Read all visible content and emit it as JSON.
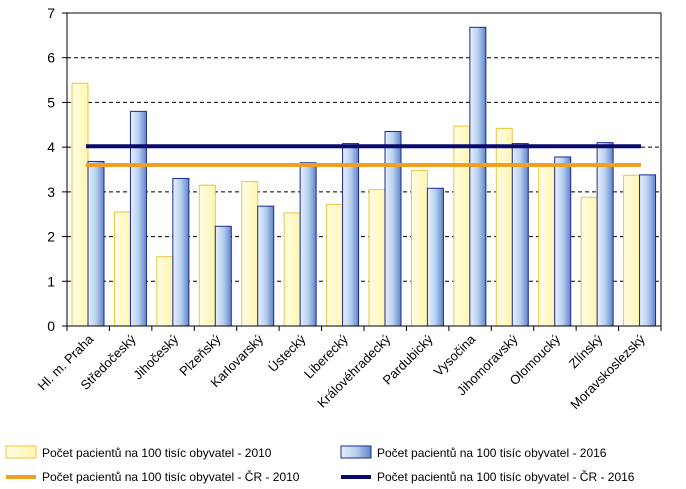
{
  "chart_data": {
    "type": "bar",
    "title": "",
    "xlabel": "",
    "ylabel": "",
    "ylim": [
      0,
      7
    ],
    "yticks": [
      0,
      1,
      2,
      3,
      4,
      5,
      6,
      7
    ],
    "grid": "horizontal dashed",
    "categories": [
      "Hl. m. Praha",
      "Středočeský",
      "Jihočeský",
      "Plzeňský",
      "Karlovarský",
      "Ústecký",
      "Liberecký",
      "Královéhradecký",
      "Pardubický",
      "Vysočina",
      "Jihomoravský",
      "Olomoucký",
      "Zlínský",
      "Moravskoslezský"
    ],
    "series": [
      {
        "name": "Počet pacientů na 100 tisíc obyvatel - 2010",
        "color": "#FFF6B0",
        "stroke": "#E8C840",
        "values": [
          5.43,
          2.55,
          1.55,
          3.15,
          3.23,
          2.53,
          2.72,
          3.05,
          3.48,
          4.47,
          4.42,
          3.6,
          2.88,
          3.37
        ]
      },
      {
        "name": "Počet pacientů na 100 tisíc obyvatel - 2016",
        "color": "#B8D0F0",
        "stroke": "#1C2A8C",
        "values": [
          3.68,
          4.8,
          3.3,
          2.23,
          2.68,
          3.65,
          4.08,
          4.35,
          3.08,
          6.68,
          4.08,
          3.78,
          4.1,
          3.38
        ]
      }
    ],
    "reference_lines": [
      {
        "name": "Počet pacientů na 100 tisíc obyvatel - ČR - 2010",
        "value": 3.6,
        "color": "#F0A020"
      },
      {
        "name": "Počet pacientů na 100 tisíc obyvatel - ČR - 2016",
        "value": 4.02,
        "color": "#0A0A6E"
      }
    ],
    "legend_position": "bottom"
  }
}
